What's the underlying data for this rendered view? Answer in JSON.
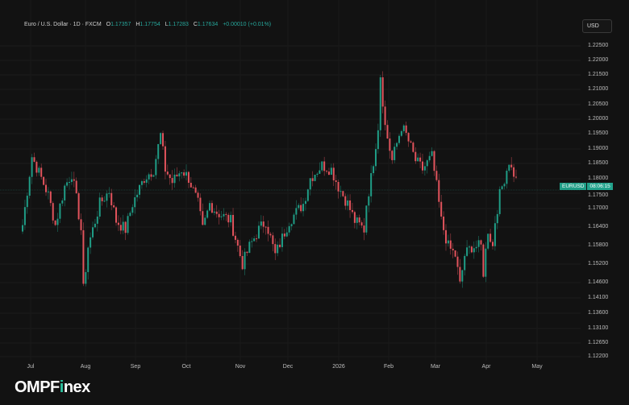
{
  "header": {
    "symbol_title": "Euro / U.S. Dollar · 1D · FXCM",
    "open_label": "O",
    "open": "1.17357",
    "high_label": "H",
    "high": "1.17754",
    "low_label": "L",
    "low": "1.17283",
    "close_label": "C",
    "close": "1.17634",
    "change": "+0.00010 (+0.01%)"
  },
  "currency_button": "USD",
  "price_tag": {
    "symbol": "EURUSD",
    "countdown": "08:06:15"
  },
  "logo": {
    "text_a": "OMPF",
    "text_b": "i",
    "text_c": "nex"
  },
  "colors": {
    "up": "#1f9d86",
    "down": "#e2535c",
    "background": "#121212",
    "grid": "#1d1d1d"
  },
  "chart_data": {
    "type": "candlestick",
    "title": "Euro / U.S. Dollar · 1D · FXCM",
    "ylabel": "USD",
    "ylim": [
      1.1193,
      1.2277
    ],
    "y_ticks": [
      "1.22500",
      "1.22000",
      "1.21500",
      "1.21000",
      "1.20500",
      "1.20000",
      "1.19500",
      "1.19000",
      "1.18500",
      "1.18000",
      "1.17500",
      "1.17000",
      "1.16400",
      "1.15800",
      "1.15200",
      "1.14600",
      "1.14100",
      "1.13600",
      "1.13100",
      "1.12650",
      "1.12200"
    ],
    "x_ticks": [
      "Jul",
      "Aug",
      "Sep",
      "Oct",
      "Nov",
      "Dec",
      "2026",
      "Feb",
      "Mar",
      "Apr",
      "May"
    ],
    "bar_count": 212,
    "last_price": 1.17634,
    "close_keypoints": [
      [
        0,
        1.1615
      ],
      [
        4,
        1.1828
      ],
      [
        8,
        1.1761
      ],
      [
        11,
        1.1708
      ],
      [
        14,
        1.1615
      ],
      [
        18,
        1.1735
      ],
      [
        21,
        1.1775
      ],
      [
        23,
        1.1695
      ],
      [
        25,
        1.1601
      ],
      [
        26,
        1.1414
      ],
      [
        28,
        1.1548
      ],
      [
        30,
        1.1601
      ],
      [
        33,
        1.1681
      ],
      [
        37,
        1.1721
      ],
      [
        40,
        1.1628
      ],
      [
        44,
        1.1601
      ],
      [
        47,
        1.1681
      ],
      [
        52,
        1.1761
      ],
      [
        56,
        1.1788
      ],
      [
        59,
        1.1895
      ],
      [
        61,
        1.1788
      ],
      [
        64,
        1.1748
      ],
      [
        68,
        1.1788
      ],
      [
        71,
        1.1761
      ],
      [
        75,
        1.1681
      ],
      [
        77,
        1.1601
      ],
      [
        80,
        1.1681
      ],
      [
        83,
        1.1655
      ],
      [
        89,
        1.1628
      ],
      [
        94,
        1.1494
      ],
      [
        97,
        1.1548
      ],
      [
        101,
        1.1601
      ],
      [
        104,
        1.1628
      ],
      [
        108,
        1.1521
      ],
      [
        111,
        1.1575
      ],
      [
        114,
        1.1628
      ],
      [
        120,
        1.1681
      ],
      [
        123,
        1.1761
      ],
      [
        128,
        1.1801
      ],
      [
        132,
        1.1788
      ],
      [
        135,
        1.1735
      ],
      [
        139,
        1.1681
      ],
      [
        142,
        1.1628
      ],
      [
        146,
        1.1601
      ],
      [
        147,
        1.1681
      ],
      [
        149,
        1.1761
      ],
      [
        152,
        1.1922
      ],
      [
        153,
        1.2082
      ],
      [
        155,
        1.1922
      ],
      [
        158,
        1.1815
      ],
      [
        159,
        1.1842
      ],
      [
        162,
        1.1922
      ],
      [
        164,
        1.1895
      ],
      [
        168,
        1.1815
      ],
      [
        171,
        1.1788
      ],
      [
        175,
        1.1828
      ],
      [
        177,
        1.1735
      ],
      [
        179,
        1.1628
      ],
      [
        182,
        1.1548
      ],
      [
        185,
        1.1521
      ],
      [
        187,
        1.1428
      ],
      [
        189,
        1.1521
      ],
      [
        192,
        1.1548
      ],
      [
        196,
        1.1548
      ],
      [
        197,
        1.1468
      ],
      [
        199,
        1.1601
      ],
      [
        201,
        1.1548
      ],
      [
        202,
        1.1628
      ],
      [
        204,
        1.1708
      ],
      [
        208,
        1.1815
      ],
      [
        209,
        1.1788
      ],
      [
        211,
        1.17634
      ]
    ]
  }
}
